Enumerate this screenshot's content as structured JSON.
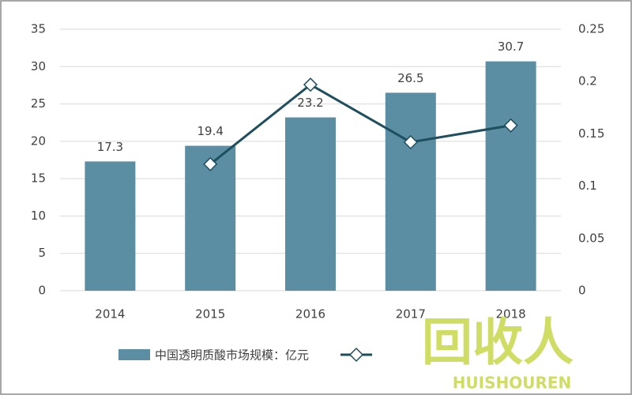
{
  "chart_data": {
    "type": "bar",
    "categories": [
      "2014",
      "2015",
      "2016",
      "2017",
      "2018"
    ],
    "series": [
      {
        "name": "中国透明质酸市场规模：亿元",
        "type": "bar",
        "color": "#5b8ea2",
        "values": [
          17.3,
          19.4,
          23.2,
          26.5,
          30.7
        ]
      },
      {
        "type": "line",
        "axis": "y2",
        "color": "#1e4f5f",
        "values": [
          null,
          0.121,
          0.197,
          0.142,
          0.158
        ]
      }
    ],
    "ylim": [
      0,
      35
    ],
    "yticks": [
      0,
      5,
      10,
      15,
      20,
      25,
      30,
      35
    ],
    "y2lim": [
      0,
      0.25
    ],
    "y2ticks": [
      0,
      0.05,
      0.1,
      0.15,
      0.2,
      0.25
    ],
    "grid": true,
    "legend": "bottom",
    "watermark": {
      "main": "回收人",
      "sub": "HUISHOUREN"
    }
  }
}
